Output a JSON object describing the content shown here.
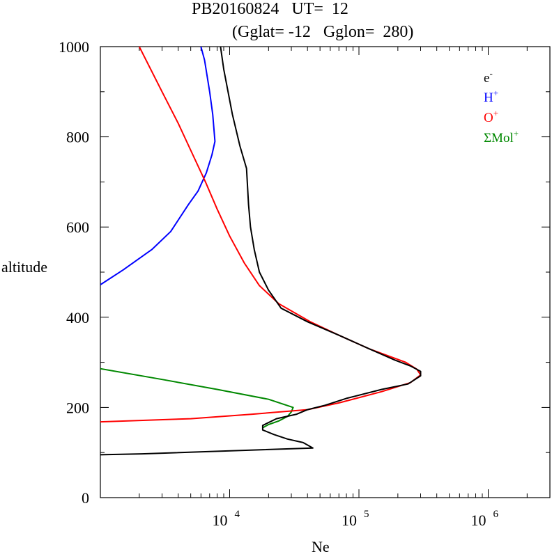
{
  "chart_data": {
    "type": "line",
    "title_line1": "PB20160824   UT=  12",
    "title_line2": "(Gglat= -12   Gglon=  280)",
    "xlabel": "Ne",
    "ylabel": "altitude",
    "x_scale": "log",
    "xlim": [
      1000,
      3000000
    ],
    "ylim": [
      0,
      1000
    ],
    "y_ticks": [
      0,
      200,
      400,
      600,
      800,
      1000
    ],
    "y_tick_labels": [
      "0",
      "200",
      "400",
      "600",
      "800",
      "1000"
    ],
    "x_ticks": [
      10000,
      100000,
      1000000
    ],
    "x_tick_labels": [
      {
        "base": "10",
        "exp": "4"
      },
      {
        "base": "10",
        "exp": "5"
      },
      {
        "base": "10",
        "exp": "6"
      }
    ],
    "series": [
      {
        "name": "e-",
        "label": "e",
        "sup": "-",
        "color": "#000000",
        "points": [
          [
            1000,
            95
          ],
          [
            2100,
            97
          ],
          [
            44000,
            110
          ],
          [
            37000,
            122
          ],
          [
            28000,
            130
          ],
          [
            22000,
            140
          ],
          [
            18000,
            150
          ],
          [
            18000,
            160
          ],
          [
            23000,
            175
          ],
          [
            33000,
            185
          ],
          [
            40000,
            195
          ],
          [
            55000,
            205
          ],
          [
            80000,
            220
          ],
          [
            150000,
            240
          ],
          [
            240000,
            252
          ],
          [
            300000,
            270
          ],
          [
            300000,
            280
          ],
          [
            250000,
            292
          ],
          [
            190000,
            305
          ],
          [
            120000,
            330
          ],
          [
            70000,
            360
          ],
          [
            40000,
            390
          ],
          [
            25000,
            420
          ],
          [
            20000,
            460
          ],
          [
            17000,
            500
          ],
          [
            15500,
            550
          ],
          [
            14500,
            600
          ],
          [
            14000,
            650
          ],
          [
            13500,
            730
          ],
          [
            12000,
            780
          ],
          [
            10500,
            850
          ],
          [
            9000,
            950
          ],
          [
            8500,
            1000
          ]
        ]
      },
      {
        "name": "H+",
        "label": "H",
        "sup": "+",
        "color": "#0000ff",
        "points": [
          [
            1000,
            472
          ],
          [
            1500,
            505
          ],
          [
            2500,
            550
          ],
          [
            3500,
            590
          ],
          [
            4800,
            650
          ],
          [
            5700,
            680
          ],
          [
            6600,
            720
          ],
          [
            7300,
            760
          ],
          [
            7700,
            790
          ],
          [
            7400,
            850
          ],
          [
            7000,
            900
          ],
          [
            6400,
            970
          ],
          [
            6000,
            1000
          ]
        ]
      },
      {
        "name": "O+",
        "label": "O",
        "sup": "+",
        "color": "#ff0000",
        "points": [
          [
            1000,
            168
          ],
          [
            5000,
            175
          ],
          [
            15000,
            185
          ],
          [
            40000,
            195
          ],
          [
            70000,
            210
          ],
          [
            150000,
            235
          ],
          [
            250000,
            255
          ],
          [
            300000,
            272
          ],
          [
            280000,
            285
          ],
          [
            230000,
            300
          ],
          [
            120000,
            330
          ],
          [
            70000,
            360
          ],
          [
            42000,
            390
          ],
          [
            24000,
            430
          ],
          [
            17000,
            470
          ],
          [
            13000,
            520
          ],
          [
            10000,
            580
          ],
          [
            8000,
            640
          ],
          [
            6500,
            700
          ],
          [
            5000,
            770
          ],
          [
            4000,
            830
          ],
          [
            3000,
            900
          ],
          [
            2000,
            1000
          ]
        ]
      },
      {
        "name": "ΣMol+",
        "label": "ΣMol",
        "sup": "+",
        "color": "#008800",
        "points": [
          [
            1000,
            286
          ],
          [
            3000,
            262
          ],
          [
            8000,
            240
          ],
          [
            20000,
            218
          ],
          [
            31000,
            200
          ],
          [
            30000,
            190
          ],
          [
            28000,
            180
          ],
          [
            24000,
            170
          ],
          [
            20000,
            162
          ],
          [
            18000,
            155
          ]
        ]
      }
    ]
  }
}
